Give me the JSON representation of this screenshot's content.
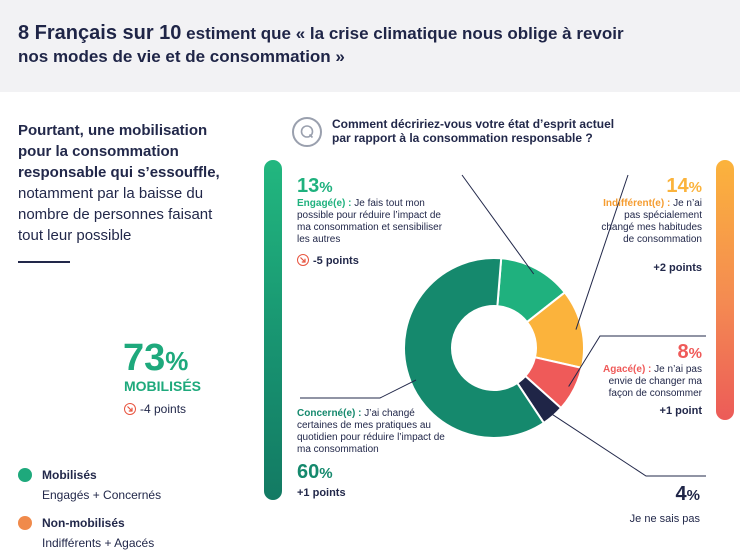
{
  "header": {
    "title_big": "8 Français sur 10",
    "title_rest": " estiment que « la crise climatique nous oblige à revoir",
    "title_line2": "nos modes de vie et de consommation »"
  },
  "intro": {
    "bold": "Pourtant, une mobilisation pour la consommation responsable qui s’essouffle,",
    "regular": " notamment par la baisse du nombre de personnes faisant tout leur possible"
  },
  "mobilises": {
    "value": "73",
    "symbol": "%",
    "label": "MOBILISÉS",
    "change": "-4 points"
  },
  "legend": [
    {
      "title": "Mobilisés",
      "sub": "Engagés + Concernés",
      "color": "#1ea97c"
    },
    {
      "title": "Non-mobilisés",
      "sub": "Indifférents + Agacés",
      "color": "#f08a4b"
    }
  ],
  "question": "Comment décririez-vous votre état d’esprit actuel par rapport à la consommation responsable ?",
  "segments": {
    "engage": {
      "value": "13",
      "symbol": "%",
      "title": "Engagé(e) :",
      "text": " Je fais tout mon possible pour réduire l’impact de ma consommation et sensibiliser les autres",
      "change": "-5 points"
    },
    "indifferent": {
      "value": "14",
      "symbol": "%",
      "title": "Indifférent(e) :",
      "text": " Je n’ai pas spécialement changé mes habitudes de consommation",
      "change": "+2 points"
    },
    "agace": {
      "value": "8",
      "symbol": "%",
      "title": "Agacé(e) :",
      "text": " Je n’ai pas envie de changer ma façon de consommer",
      "change": "+1 point"
    },
    "concerne": {
      "value": "60",
      "symbol": "%",
      "title": "Concerné(e) :",
      "text": " J’ai changé certaines de mes pratiques au quotidien pour réduire l’impact de ma consommation",
      "change": "+1 points"
    },
    "nsp": {
      "value": "4",
      "symbol": "%",
      "text": "Je ne sais pas"
    }
  },
  "chart_data": {
    "type": "pie",
    "variant": "donut",
    "title": "Comment décririez-vous votre état d’esprit actuel par rapport à la consommation responsable ?",
    "categories": [
      "Engagé(e)",
      "Indifférent(e)",
      "Agacé(e)",
      "Je ne sais pas",
      "Concerné(e)"
    ],
    "values": [
      13,
      14,
      8,
      4,
      60
    ],
    "changes": [
      "-5 points",
      "+2 points",
      "+1 point",
      "",
      "+1 points"
    ],
    "colors": [
      "#1fb17e",
      "#fbb33c",
      "#ef5a59",
      "#1f2547",
      "#15896d"
    ]
  }
}
